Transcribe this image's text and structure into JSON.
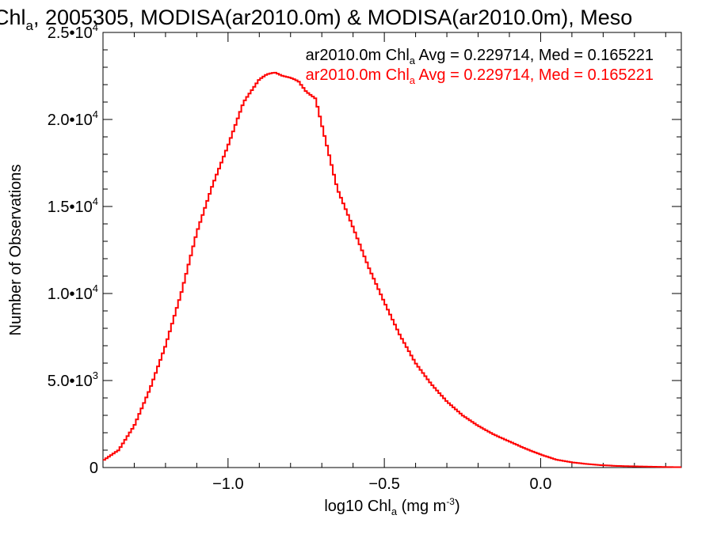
{
  "chart_data": {
    "type": "line",
    "title_main": "Chl",
    "title_sub": "a",
    "title_rest": ", 2005305, MODISA(ar2010.0m) & MODISA(ar2010.0m), Meso",
    "xlabel_main": "log10 Chl",
    "xlabel_sub": "a",
    "xlabel_units": " (mg m",
    "xlabel_exp": "-3",
    "xlabel_close": ")",
    "ylabel": "Number of Observations",
    "xlim": [
      -1.4,
      0.45
    ],
    "ylim": [
      0,
      25000
    ],
    "x_ticks": [
      {
        "value": -1.0,
        "label": "−1.0"
      },
      {
        "value": -0.5,
        "label": "−0.5"
      },
      {
        "value": 0.0,
        "label": "0.0"
      }
    ],
    "y_ticks": [
      {
        "value": 0,
        "mantissa": "0",
        "exp": ""
      },
      {
        "value": 5000,
        "mantissa": "5.0•10",
        "exp": "3"
      },
      {
        "value": 10000,
        "mantissa": "1.0•10",
        "exp": "4"
      },
      {
        "value": 15000,
        "mantissa": "1.5•10",
        "exp": "4"
      },
      {
        "value": 20000,
        "mantissa": "2.0•10",
        "exp": "4"
      },
      {
        "value": 25000,
        "mantissa": "2.5•10",
        "exp": "4"
      }
    ],
    "legend": [
      {
        "color": "#000000",
        "prefix": "ar2010.0m Chl",
        "sub": "a",
        "suffix": " Avg = 0.229714, Med = 0.165221"
      },
      {
        "color": "#ff0000",
        "prefix": "ar2010.0m Chl",
        "sub": "a",
        "suffix": " Avg = 0.229714, Med = 0.165221"
      }
    ],
    "series": [
      {
        "color": "#ff0000",
        "x": [
          -1.4,
          -1.35,
          -1.3,
          -1.25,
          -1.2,
          -1.15,
          -1.1,
          -1.05,
          -1.0,
          -0.95,
          -0.9,
          -0.875,
          -0.85,
          -0.825,
          -0.8,
          -0.775,
          -0.75,
          -0.72,
          -0.7,
          -0.65,
          -0.6,
          -0.55,
          -0.5,
          -0.45,
          -0.4,
          -0.35,
          -0.3,
          -0.25,
          -0.2,
          -0.15,
          -0.1,
          -0.05,
          0.0,
          0.05,
          0.1,
          0.15,
          0.2,
          0.25,
          0.3,
          0.35,
          0.4,
          0.45
        ],
        "y": [
          400,
          1000,
          2400,
          4500,
          7000,
          10000,
          13500,
          16200,
          18500,
          21000,
          22300,
          22600,
          22700,
          22500,
          22400,
          22200,
          21600,
          21200,
          19700,
          16000,
          13800,
          11500,
          9500,
          7600,
          6000,
          4800,
          3800,
          3000,
          2400,
          1900,
          1500,
          1100,
          750,
          450,
          300,
          200,
          130,
          90,
          70,
          50,
          30,
          20
        ]
      }
    ]
  }
}
